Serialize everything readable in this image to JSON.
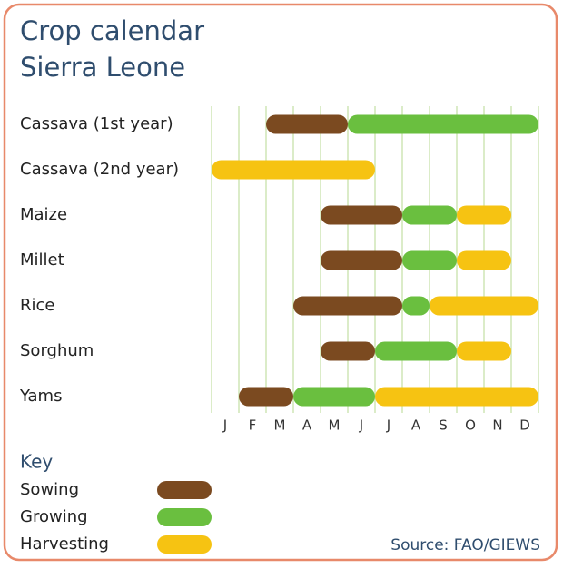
{
  "chart_data": {
    "type": "gantt",
    "title": [
      "Crop calendar",
      "Sierra Leone"
    ],
    "categories": [
      "Cassava (1st year)",
      "Cassava (2nd year)",
      "Maize",
      "Millet",
      "Rice",
      "Sorghum",
      "Yams"
    ],
    "months": [
      "J",
      "F",
      "M",
      "A",
      "M",
      "J",
      "J",
      "A",
      "S",
      "O",
      "N",
      "D"
    ],
    "xlim": [
      0,
      12
    ],
    "xticks": [
      0,
      1,
      2,
      3,
      4,
      5,
      6,
      7,
      8,
      9,
      10,
      11,
      12
    ],
    "grid": true,
    "legend_title": "Key",
    "series": [
      {
        "name": "Sowing",
        "color": "#7b4a20",
        "start": [
          2,
          null,
          4,
          4,
          3,
          4,
          1
        ],
        "end": [
          5,
          null,
          7,
          7,
          7,
          6,
          3
        ]
      },
      {
        "name": "Growing",
        "color": "#6abf3f",
        "start": [
          5,
          null,
          7,
          7,
          7,
          6,
          3
        ],
        "end": [
          12,
          null,
          9,
          9,
          8,
          9,
          6
        ]
      },
      {
        "name": "Harvesting",
        "color": "#f6c312",
        "start": [
          null,
          0,
          9,
          9,
          8,
          9,
          6
        ],
        "end": [
          null,
          6,
          11,
          11,
          12,
          11,
          12
        ]
      }
    ],
    "source": "Source: FAO/GIEWS"
  }
}
